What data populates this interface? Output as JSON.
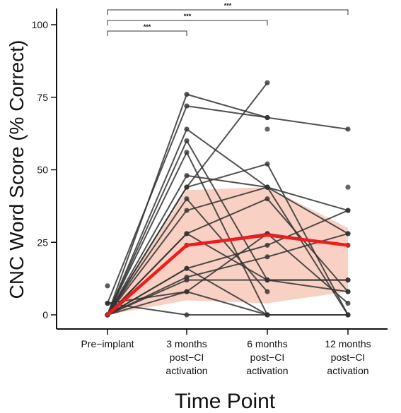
{
  "chart_data": {
    "type": "line",
    "xlabel": "Time Point",
    "ylabel": "CNC Word Score (% Correct)",
    "ylim": [
      0,
      105
    ],
    "yticks": [
      0,
      25,
      50,
      75,
      100
    ],
    "categories": [
      [
        "Pre−implant"
      ],
      [
        "3 months",
        "post−CI",
        "activation"
      ],
      [
        "6 months",
        "post−CI",
        "activation"
      ],
      [
        "12 months",
        "post−CI",
        "activation"
      ]
    ],
    "grid": false,
    "legend": "none",
    "colors": {
      "individual": "#333333",
      "mean": "#ee1c1c",
      "ribbon": "#f7c2b0"
    },
    "individual_series": [
      {
        "values": [
          0,
          76,
          68,
          64
        ]
      },
      {
        "values": [
          4,
          72,
          68,
          null
        ]
      },
      {
        "values": [
          0,
          64,
          44,
          36
        ]
      },
      {
        "values": [
          0,
          60,
          12,
          8
        ]
      },
      {
        "values": [
          0,
          56,
          0,
          null
        ]
      },
      {
        "values": [
          0,
          48,
          44,
          0
        ]
      },
      {
        "values": [
          0,
          44,
          52,
          0
        ]
      },
      {
        "values": [
          0,
          44,
          80,
          null
        ]
      },
      {
        "values": [
          0,
          40,
          8,
          null
        ]
      },
      {
        "values": [
          0,
          36,
          44,
          28
        ]
      },
      {
        "values": [
          0,
          28,
          40,
          8
        ]
      },
      {
        "values": [
          0,
          28,
          12,
          12
        ]
      },
      {
        "values": [
          0,
          24,
          28,
          24
        ]
      },
      {
        "values": [
          0,
          16,
          24,
          36
        ]
      },
      {
        "values": [
          0,
          16,
          0,
          null
        ]
      },
      {
        "values": [
          0,
          13,
          20,
          28
        ]
      },
      {
        "values": [
          0,
          12,
          12,
          12
        ]
      },
      {
        "values": [
          4,
          8,
          28,
          4
        ]
      },
      {
        "values": [
          0,
          8,
          0,
          0
        ]
      },
      {
        "values": [
          4,
          0,
          0,
          0
        ]
      },
      {
        "values": [
          10,
          null,
          null,
          null
        ]
      }
    ],
    "extra_points": [
      {
        "x": 2,
        "y": 64
      },
      {
        "x": 3,
        "y": 44
      }
    ],
    "mean_series": {
      "values": [
        0,
        24,
        27.5,
        24
      ],
      "ribbon_lower": [
        0,
        5,
        4,
        8
      ],
      "ribbon_upper": [
        0,
        43,
        44,
        30
      ]
    },
    "significance": [
      {
        "from": 0,
        "to": 1,
        "label": "***"
      },
      {
        "from": 0,
        "to": 2,
        "label": "***"
      },
      {
        "from": 0,
        "to": 3,
        "label": "***"
      }
    ]
  }
}
